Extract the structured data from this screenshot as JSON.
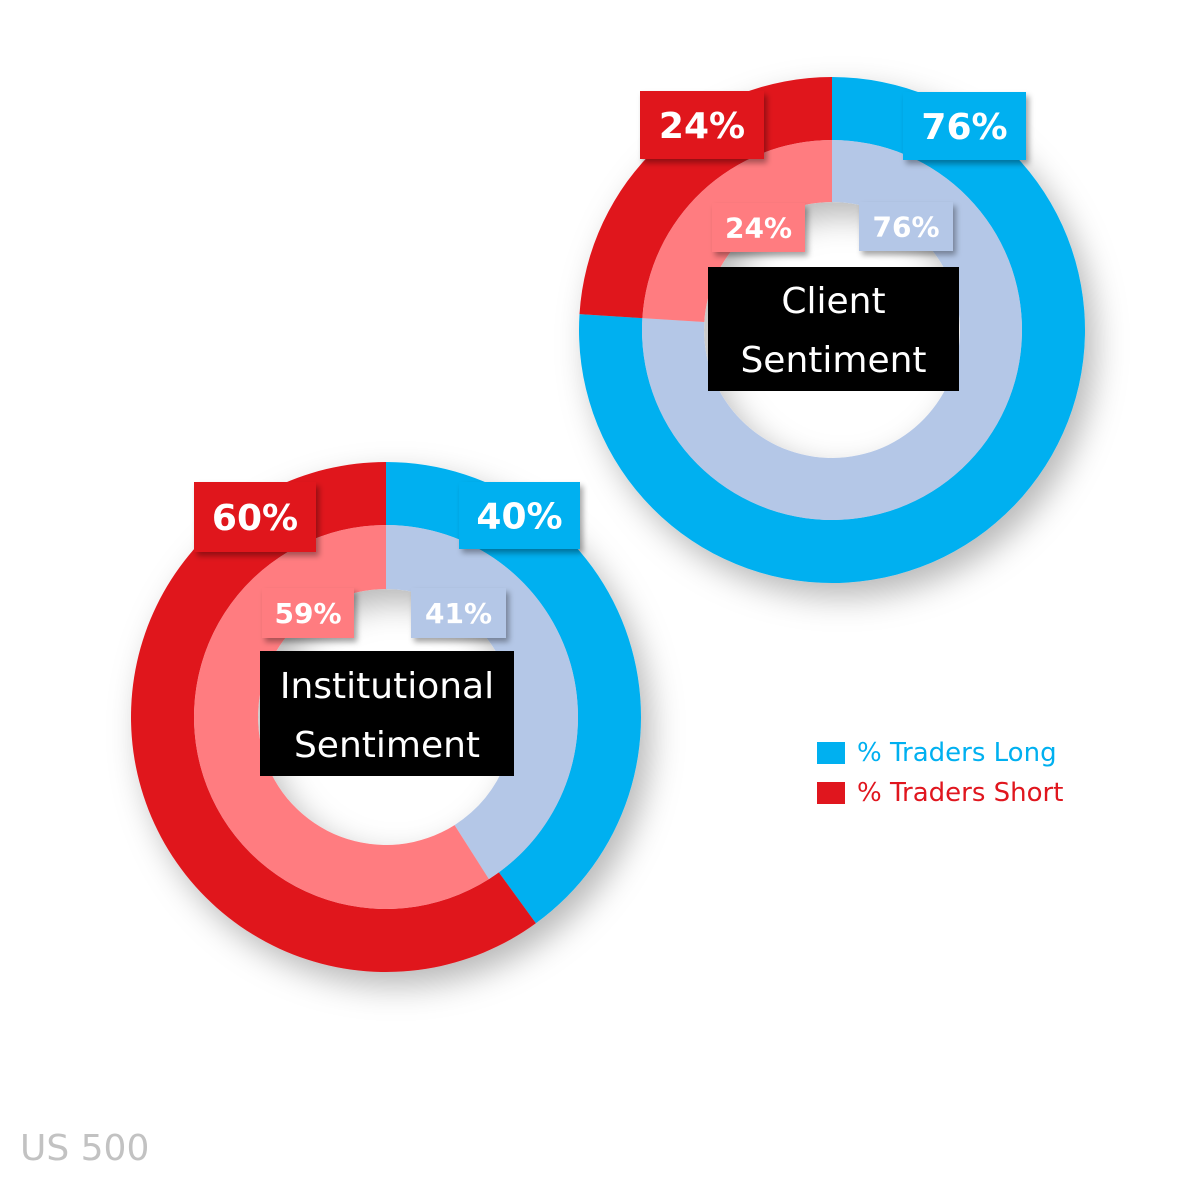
{
  "colors": {
    "long_outer": "#00b0f0",
    "short_outer": "#e0161e",
    "long_inner": "#b4c7e7",
    "short_inner": "#ff7c80",
    "center_box": "#000000",
    "footer_text": "#c2c2c2"
  },
  "chart_data": [
    {
      "type": "donut",
      "center_label": [
        "Client",
        "Sentiment"
      ],
      "outer_ring": {
        "long_pct": 76,
        "short_pct": 24,
        "long_label": "76%",
        "short_label": "24%"
      },
      "inner_ring": {
        "long_pct": 76,
        "short_pct": 24,
        "long_label": "76%",
        "short_label": "24%"
      }
    },
    {
      "type": "donut",
      "center_label": [
        "Institutional",
        "Sentiment"
      ],
      "outer_ring": {
        "long_pct": 40,
        "short_pct": 60,
        "long_label": "40%",
        "short_label": "60%"
      },
      "inner_ring": {
        "long_pct": 41,
        "short_pct": 59,
        "long_label": "41%",
        "short_label": "59%"
      }
    }
  ],
  "legend": {
    "long_label": "% Traders Long",
    "short_label": "% Traders Short"
  },
  "footer": {
    "symbol": "US 500"
  }
}
